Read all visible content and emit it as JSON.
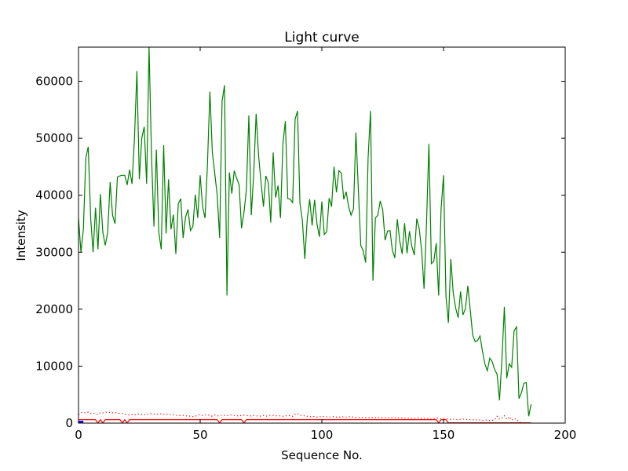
{
  "chart_data": {
    "type": "line",
    "title": "Light curve",
    "xlabel": "Sequence No.",
    "ylabel": "Intensity",
    "xlim": [
      0,
      200
    ],
    "ylim": [
      0,
      66000
    ],
    "x_ticks": [
      0,
      50,
      100,
      150,
      200
    ],
    "y_ticks": [
      0,
      10000,
      20000,
      30000,
      40000,
      50000,
      60000
    ],
    "x_tick_labels": [
      "0",
      "50",
      "100",
      "150",
      "200"
    ],
    "y_tick_labels": [
      "0",
      "10000",
      "20000",
      "30000",
      "40000",
      "50000",
      "60000"
    ],
    "grid": false,
    "legend": "none",
    "series": [
      {
        "color": "#008000",
        "style": "solid",
        "x_start": 0,
        "values": [
          36000,
          30000,
          34000,
          46500,
          48500,
          36000,
          30000,
          37800,
          30500,
          40200,
          33500,
          31200,
          33500,
          42300,
          36500,
          35000,
          43200,
          43400,
          43500,
          43500,
          41800,
          44500,
          42000,
          50000,
          61800,
          42800,
          50000,
          52000,
          42000,
          66000,
          47000,
          34500,
          48000,
          33500,
          30500,
          48800,
          33300,
          42800,
          34000,
          36600,
          29700,
          38500,
          39400,
          32500,
          36200,
          37500,
          33800,
          34500,
          40100,
          36000,
          43500,
          38000,
          36000,
          45500,
          58200,
          47500,
          43800,
          40000,
          32500,
          56500,
          59300,
          22400,
          44000,
          40300,
          44300,
          43000,
          41800,
          34200,
          37000,
          41000,
          54000,
          36500,
          43800,
          54300,
          47000,
          42300,
          38000,
          43400,
          42200,
          35200,
          47500,
          39600,
          41700,
          36000,
          49000,
          53000,
          39400,
          39300,
          38700,
          53300,
          54800,
          38600,
          35500,
          28800,
          35800,
          39300,
          34700,
          39200,
          35000,
          32700,
          38900,
          33100,
          33600,
          39500,
          38000,
          45000,
          40500,
          44300,
          43900,
          39300,
          40600,
          38000,
          36500,
          37600,
          51000,
          41000,
          31200,
          30200,
          28200,
          46500,
          54800,
          25000,
          36000,
          36500,
          39000,
          37500,
          32100,
          33700,
          33800,
          30300,
          29000,
          35800,
          32000,
          29700,
          35100,
          29800,
          33700,
          31000,
          29500,
          35900,
          34200,
          30300,
          23600,
          35000,
          49000,
          28000,
          28400,
          31600,
          22400,
          37600,
          43500,
          22300,
          17600,
          28800,
          22800,
          20200,
          18500,
          23100,
          19000,
          20100,
          24100,
          19800,
          15400,
          14300,
          14500,
          15300,
          12600,
          10400,
          9200,
          11400,
          10800,
          9400,
          8600,
          4000,
          11200,
          20400,
          7900,
          10400,
          9800,
          16200,
          16900,
          4300,
          5300,
          7000,
          7100,
          1200,
          3300
        ]
      },
      {
        "color": "#ff0000",
        "style": "dotted",
        "x_start": 0,
        "values": [
          1500,
          1800,
          1900,
          1750,
          1950,
          1700,
          1750,
          1650,
          1500,
          1850,
          1800,
          1950,
          1850,
          1900,
          1800,
          1850,
          1750,
          1700,
          1700,
          1600,
          1500,
          1400,
          1500,
          1400,
          1600,
          1550,
          1500,
          1500,
          1400,
          1700,
          1650,
          1600,
          1550,
          1550,
          1650,
          1550,
          1500,
          1600,
          1400,
          1450,
          1400,
          1300,
          1350,
          1350,
          1300,
          1200,
          1250,
          1150,
          1200,
          1400,
          1500,
          1350,
          1400,
          1500,
          1300,
          1200,
          1400,
          1250,
          1350,
          1400,
          1350,
          1300,
          1400,
          1450,
          1350,
          1300,
          1250,
          1350,
          1400,
          1350,
          1300,
          1250,
          1350,
          1300,
          1200,
          1250,
          1350,
          1200,
          1300,
          1400,
          1350,
          1300,
          1250,
          1300,
          1200,
          1250,
          1350,
          1300,
          1200,
          1550,
          1700,
          1350,
          1400,
          1250,
          1200,
          1100,
          1200,
          1150,
          1050,
          1150,
          1100,
          1200,
          1100,
          1050,
          1100,
          1150,
          1050,
          1100,
          1000,
          1150,
          1050,
          1100,
          1150,
          1050,
          1000,
          1000,
          1050,
          1000,
          950,
          950,
          1000,
          1000,
          950,
          1000,
          950,
          1000,
          950,
          1000,
          950,
          1000,
          950,
          900,
          950,
          900,
          850,
          900,
          850,
          800,
          850,
          900,
          950,
          800,
          850,
          800,
          850,
          700,
          800,
          850,
          900,
          750,
          850,
          800,
          700,
          650,
          700,
          650,
          600,
          650,
          700,
          650,
          600,
          600,
          550,
          650,
          500,
          550,
          450,
          500,
          550,
          450,
          500,
          550,
          1200,
          700,
          900,
          1300,
          650,
          1150,
          500,
          800,
          700,
          200,
          100,
          50
        ]
      },
      {
        "color": "#ff0000",
        "style": "solid",
        "x_start": 0,
        "values": [
          600,
          600,
          600,
          600,
          600,
          600,
          600,
          600,
          50,
          600,
          50,
          600,
          600,
          600,
          600,
          600,
          600,
          600,
          50,
          600,
          50,
          600,
          600,
          600,
          600,
          600,
          600,
          600,
          600,
          600,
          600,
          600,
          600,
          600,
          600,
          600,
          600,
          600,
          600,
          600,
          600,
          600,
          600,
          600,
          600,
          600,
          600,
          600,
          600,
          600,
          600,
          600,
          600,
          600,
          600,
          600,
          600,
          600,
          50,
          600,
          600,
          600,
          600,
          600,
          600,
          600,
          600,
          600,
          50,
          600,
          600,
          600,
          600,
          600,
          600,
          600,
          600,
          600,
          600,
          600,
          600,
          600,
          600,
          600,
          600,
          600,
          600,
          600,
          600,
          600,
          600,
          600,
          600,
          600,
          600,
          600,
          600,
          600,
          600,
          600,
          600,
          600,
          600,
          600,
          600,
          600,
          600,
          600,
          600,
          600,
          600,
          600,
          600,
          600,
          600,
          600,
          600,
          600,
          600,
          600,
          600,
          600,
          600,
          600,
          600,
          600,
          600,
          600,
          600,
          600,
          600,
          600,
          600,
          600,
          600,
          600,
          600,
          600,
          600,
          600,
          600,
          600,
          600,
          600,
          600,
          600,
          600,
          600,
          50,
          600,
          600,
          600,
          50,
          50,
          50,
          50,
          50,
          50,
          50,
          50,
          50,
          50,
          50,
          50,
          50,
          50,
          50,
          50,
          50,
          50,
          50,
          50,
          50,
          50,
          50,
          50,
          50,
          50,
          50,
          50,
          50,
          50,
          50,
          50,
          50,
          50,
          50
        ]
      },
      {
        "color": "#0000ff",
        "style": "solid",
        "x_start": 0,
        "values": [
          200,
          200,
          200
        ]
      }
    ]
  }
}
